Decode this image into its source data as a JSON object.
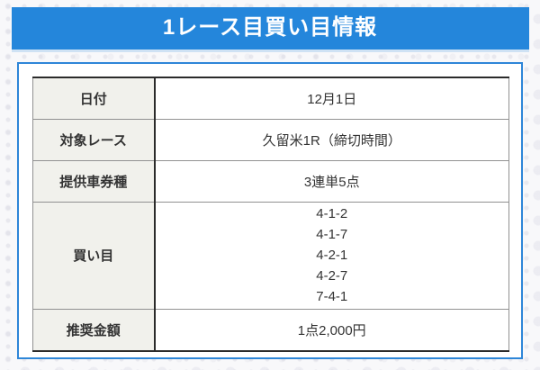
{
  "banner": {
    "title": "1レース目買い目情報"
  },
  "table": {
    "rows": [
      {
        "label": "日付",
        "values": [
          "12月1日"
        ]
      },
      {
        "label": "対象レース",
        "values": [
          "久留米1R（締切時間）"
        ]
      },
      {
        "label": "提供車券種",
        "values": [
          "3連単5点"
        ]
      },
      {
        "label": "買い目",
        "values": [
          "4-1-2",
          "4-1-7",
          "4-2-1",
          "4-2-7",
          "7-4-1"
        ]
      },
      {
        "label": "推奨金額",
        "values": [
          "1点2,000円"
        ]
      }
    ]
  },
  "colors": {
    "banner_blue": "#2486db",
    "banner_underline": "#cfe2f4",
    "panel_border_blue": "#2e86d8",
    "label_cell_bg": "#f1f1ec",
    "table_dark_border": "#2b2b2b",
    "table_gray_border": "#919191",
    "text": "#333333"
  }
}
